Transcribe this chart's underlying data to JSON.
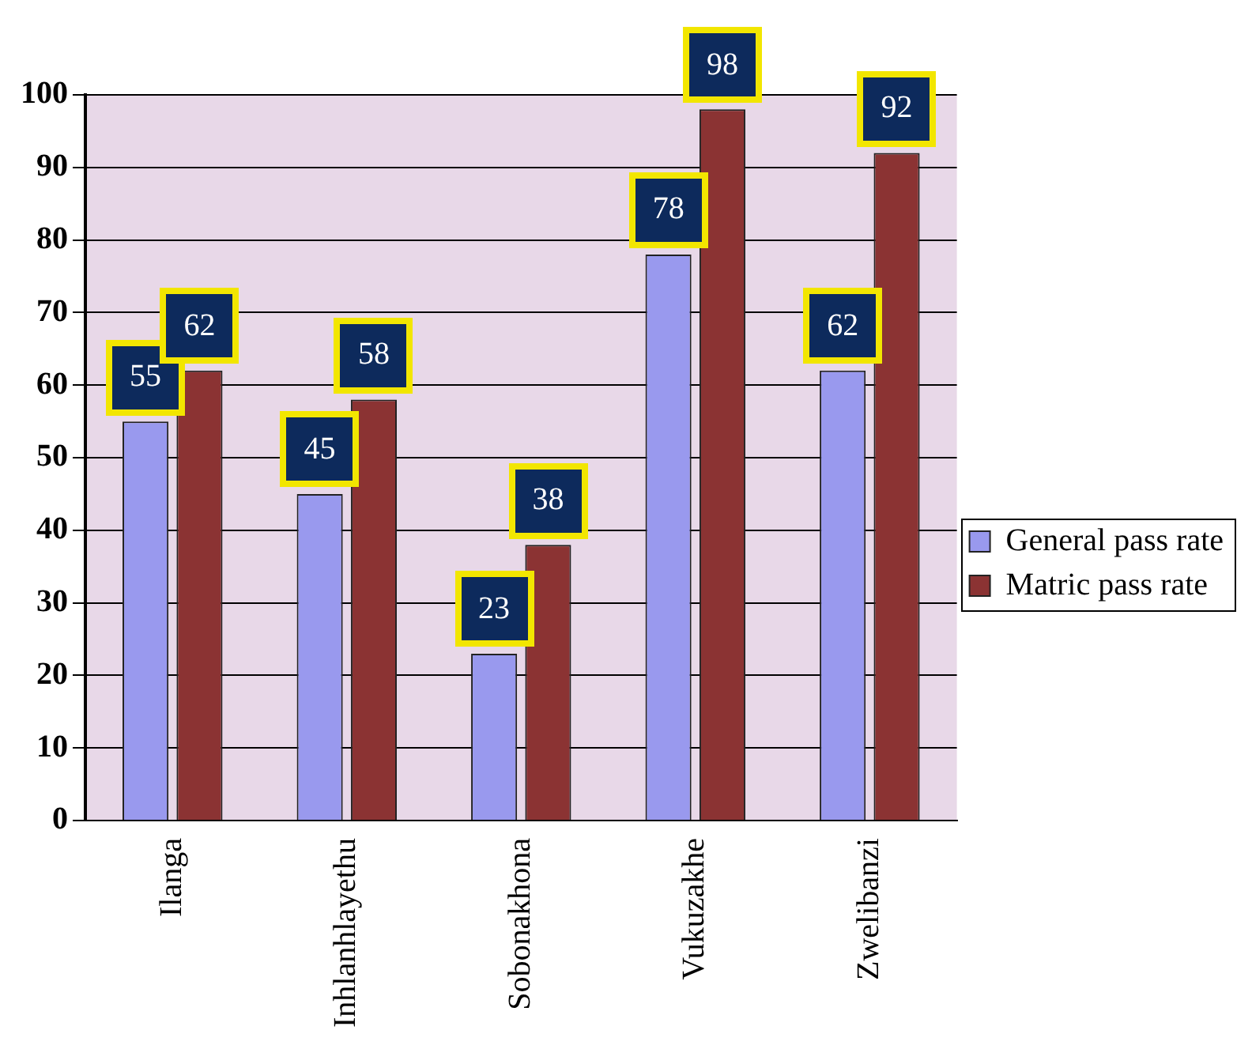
{
  "chart_data": {
    "type": "bar",
    "categories": [
      "Ilanga",
      "Inhlanhlayethu",
      "Sobonakhona",
      "Vukuzakhe",
      "Zwelibanzi"
    ],
    "series": [
      {
        "name": "General pass rate",
        "color": "#9999ee",
        "values": [
          55,
          45,
          23,
          78,
          62
        ]
      },
      {
        "name": "Matric pass rate",
        "color": "#8b3333",
        "values": [
          62,
          58,
          38,
          98,
          92
        ]
      }
    ],
    "ylim": [
      0,
      100
    ],
    "yticks": [
      0,
      10,
      20,
      30,
      40,
      50,
      60,
      70,
      80,
      90,
      100
    ],
    "grid": "y",
    "legend": "right",
    "data_labels": true
  }
}
